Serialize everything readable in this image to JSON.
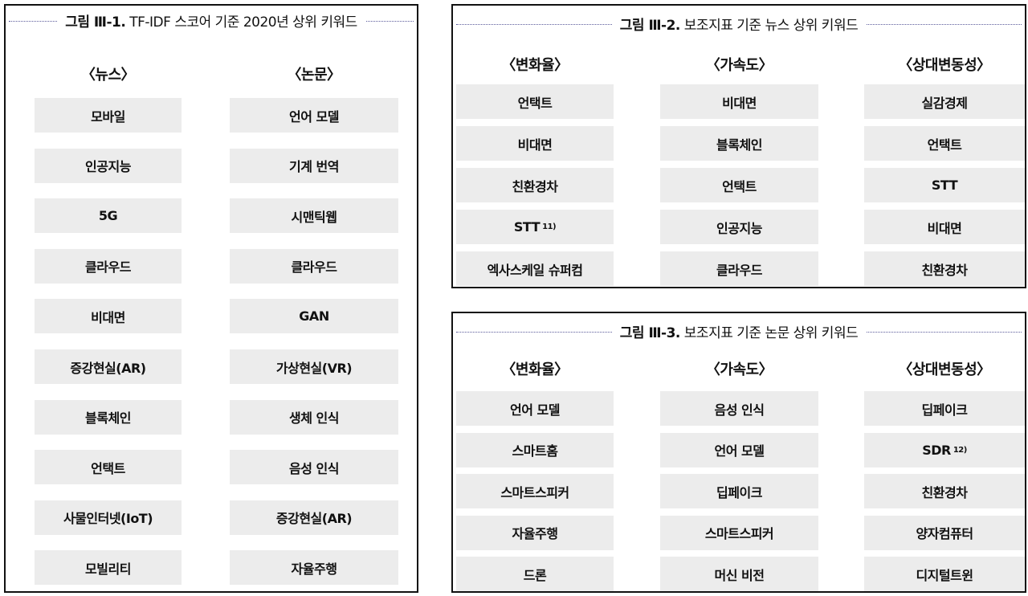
{
  "fig1": {
    "label": "그림 Ⅲ-1.",
    "title": "TF-IDF 스코어 기준 2020년 상위 키워드",
    "columns": [
      {
        "header": "〈뉴스〉",
        "items": [
          "모바일",
          "인공지능",
          "5G",
          "클라우드",
          "비대면",
          "증강현실(AR)",
          "블록체인",
          "언택트",
          "사물인터넷(IoT)",
          "모빌리티"
        ]
      },
      {
        "header": "〈논문〉",
        "items": [
          "언어 모델",
          "기계 번역",
          "시맨틱웹",
          "클라우드",
          "GAN",
          "가상현실(VR)",
          "생체 인식",
          "음성 인식",
          "증강현실(AR)",
          "자율주행"
        ]
      }
    ]
  },
  "fig2": {
    "label": "그림 Ⅲ-2.",
    "title": "보조지표 기준 뉴스 상위 키워드",
    "columns": [
      {
        "header": "〈변화율〉",
        "items": [
          "언택트",
          "비대면",
          "친환경차",
          "STT",
          "엑사스케일 슈퍼컴"
        ],
        "sups": [
          "",
          "",
          "",
          "11)",
          ""
        ]
      },
      {
        "header": "〈가속도〉",
        "items": [
          "비대면",
          "블록체인",
          "언택트",
          "인공지능",
          "클라우드"
        ],
        "sups": [
          "",
          "",
          "",
          "",
          ""
        ]
      },
      {
        "header": "〈상대변동성〉",
        "items": [
          "실감경제",
          "언택트",
          "STT",
          "비대면",
          "친환경차"
        ],
        "sups": [
          "",
          "",
          "",
          "",
          ""
        ]
      }
    ]
  },
  "fig3": {
    "label": "그림 Ⅲ-3.",
    "title": "보조지표 기준 논문 상위 키워드",
    "columns": [
      {
        "header": "〈변화율〉",
        "items": [
          "언어 모델",
          "스마트홈",
          "스마트스피커",
          "자율주행",
          "드론"
        ],
        "sups": [
          "",
          "",
          "",
          "",
          ""
        ]
      },
      {
        "header": "〈가속도〉",
        "items": [
          "음성 인식",
          "언어 모델",
          "딥페이크",
          "스마트스피커",
          "머신 비전"
        ],
        "sups": [
          "",
          "",
          "",
          "",
          ""
        ]
      },
      {
        "header": "〈상대변동성〉",
        "items": [
          "딥페이크",
          "SDR",
          "친환경차",
          "양자컴퓨터",
          "디지털트윈"
        ],
        "sups": [
          "",
          "12)",
          "",
          "",
          ""
        ]
      }
    ]
  }
}
